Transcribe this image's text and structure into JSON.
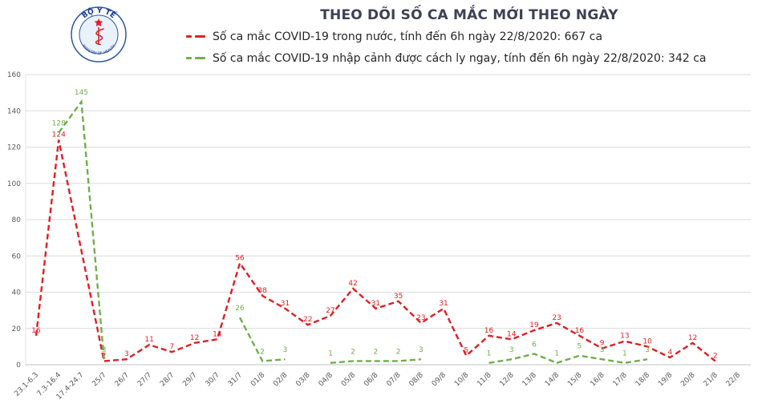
{
  "header": {
    "logo": {
      "top_text": "BỘ Y TẾ",
      "bottom_text": "MINISTRY OF HEALTH"
    },
    "title": "THEO DÕI SỐ CA MẮC MỚI THEO NGÀY",
    "legend": [
      {
        "label": "Số ca mắc COVID-19 trong nước, tính đến 6h ngày 22/8/2020: 667 ca",
        "color": "#e21d24"
      },
      {
        "label": "Số ca mắc COVID-19 nhập cảnh được cách ly ngay, tính đến 6h ngày 22/8/2020: 342 ca",
        "color": "#6fae4e"
      }
    ]
  },
  "chart_data": {
    "type": "line",
    "title": "THEO DÕI SỐ CA MẮC MỚI THEO NGÀY",
    "line_style": "dashed",
    "grid": true,
    "legend_position": "top",
    "ylim": [
      0,
      160
    ],
    "ytick_step": 20,
    "categories": [
      "23.1-6.3",
      "7.3-16.4",
      "17.4-24.7",
      "25/7",
      "26/7",
      "27/7",
      "28/7",
      "29/7",
      "30/7",
      "31/7",
      "01/8",
      "02/8",
      "03/8",
      "04/8",
      "05/8",
      "06/8",
      "07/8",
      "08/8",
      "09/8",
      "10/8",
      "11/8",
      "12/8",
      "13/8",
      "14/8",
      "15/8",
      "16/8",
      "17/8",
      "18/8",
      "19/8",
      "20/8",
      "21/8",
      "22/8"
    ],
    "series": [
      {
        "name": "Số ca mắc COVID-19 trong nước",
        "total_label": "667 ca",
        "color": "#e21d24",
        "connect_gaps": true,
        "values": [
          16,
          124,
          null,
          2,
          3,
          11,
          7,
          12,
          14,
          56,
          38,
          31,
          22,
          27,
          42,
          31,
          35,
          23,
          31,
          5,
          16,
          14,
          19,
          23,
          16,
          9,
          13,
          10,
          4,
          12,
          2,
          null
        ]
      },
      {
        "name": "Số ca mắc COVID-19 nhập cảnh được cách ly ngay",
        "total_label": "342 ca",
        "color": "#6fae4e",
        "connect_gaps": false,
        "values": [
          null,
          128,
          145,
          3,
          null,
          null,
          null,
          null,
          null,
          26,
          2,
          3,
          null,
          1,
          2,
          2,
          2,
          3,
          null,
          null,
          1,
          3,
          6,
          1,
          5,
          3,
          1,
          3,
          null,
          null,
          null,
          null
        ]
      }
    ]
  }
}
